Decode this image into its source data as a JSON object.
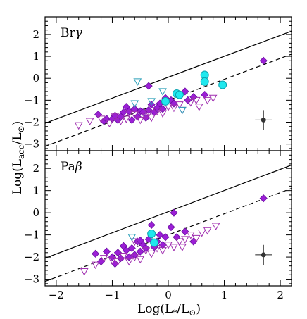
{
  "colors": {
    "diamond_fill": "#9b1fd6",
    "diamond_stroke": "#6a0fa0",
    "triangle_stroke": "#a02fb0",
    "triangle_cyan_stroke": "#2a9fb8",
    "circle_fill": "#1fe8ee",
    "circle_stroke": "#0aa3b0",
    "axis": "#000000"
  },
  "y_axis_label": "Log(L",
  "y_axis_label_sub": "acc",
  "y_axis_label_tail": "/L",
  "y_axis_label_end": ")",
  "x_axis_label": "Log(L",
  "x_axis_label_sub": "*",
  "x_axis_label_tail": "/L",
  "x_axis_label_end": ")",
  "chart_data": [
    {
      "type": "scatter",
      "title": "Brγ",
      "panel_label_base": "Br",
      "panel_label_greek": "γ",
      "xlim": [
        -2.2,
        2.2
      ],
      "ylim": [
        -3.3,
        2.8
      ],
      "xticks": [
        -2,
        -1,
        0,
        1,
        2
      ],
      "yticks": [
        -3,
        -2,
        -1,
        0,
        1,
        2
      ],
      "lines": [
        {
          "style": "solid",
          "points": [
            [
              -2.2,
              -2.05
            ],
            [
              2.2,
              2.15
            ]
          ]
        },
        {
          "style": "dashed",
          "points": [
            [
              -2.2,
              -3.1
            ],
            [
              2.2,
              1.1
            ]
          ]
        }
      ],
      "error_bar": {
        "x": 1.7,
        "y": -1.9,
        "xerr": 0.15,
        "yerr": 0.45
      },
      "series": [
        {
          "marker": "diamond",
          "points": [
            [
              -1.25,
              -1.65
            ],
            [
              -1.15,
              -1.95
            ],
            [
              -1.1,
              -1.85
            ],
            [
              -1.0,
              -1.85
            ],
            [
              -0.95,
              -1.7
            ],
            [
              -0.9,
              -1.9
            ],
            [
              -0.85,
              -1.75
            ],
            [
              -0.8,
              -1.55
            ],
            [
              -0.75,
              -1.3
            ],
            [
              -0.7,
              -1.5
            ],
            [
              -0.65,
              -1.9
            ],
            [
              -0.6,
              -1.4
            ],
            [
              -0.55,
              -1.75
            ],
            [
              -0.5,
              -1.5
            ],
            [
              -0.45,
              -1.55
            ],
            [
              -0.4,
              -1.8
            ],
            [
              -0.35,
              -1.45
            ],
            [
              -0.3,
              -1.2
            ],
            [
              -0.25,
              -1.55
            ],
            [
              -0.2,
              -1.35
            ],
            [
              -0.15,
              -1.15
            ],
            [
              -0.1,
              -1.4
            ],
            [
              -0.05,
              -0.9
            ],
            [
              0.05,
              -1.0
            ],
            [
              0.1,
              -1.15
            ],
            [
              0.15,
              -0.7
            ],
            [
              0.3,
              -0.6
            ],
            [
              0.35,
              -1.0
            ],
            [
              0.45,
              -0.85
            ],
            [
              0.65,
              -0.75
            ],
            [
              -0.35,
              -0.35
            ],
            [
              1.7,
              0.8
            ]
          ]
        },
        {
          "marker": "triangle",
          "points": [
            [
              -1.6,
              -2.15
            ],
            [
              -1.4,
              -1.95
            ],
            [
              -1.2,
              -1.85
            ],
            [
              -1.05,
              -2.05
            ],
            [
              -0.95,
              -1.75
            ],
            [
              -0.85,
              -1.95
            ],
            [
              -0.75,
              -1.85
            ],
            [
              -0.7,
              -1.6
            ],
            [
              -0.6,
              -1.65
            ],
            [
              -0.5,
              -1.9
            ],
            [
              -0.4,
              -1.7
            ],
            [
              -0.35,
              -1.6
            ],
            [
              -0.3,
              -1.8
            ],
            [
              -0.2,
              -1.5
            ],
            [
              -0.1,
              -1.6
            ],
            [
              0.0,
              -1.3
            ],
            [
              0.1,
              -1.35
            ],
            [
              0.2,
              -1.2
            ],
            [
              0.25,
              -1.45
            ],
            [
              0.4,
              -1.1
            ],
            [
              0.5,
              -1.0
            ],
            [
              0.55,
              -1.3
            ],
            [
              0.7,
              -1.0
            ],
            [
              0.8,
              -0.9
            ]
          ]
        },
        {
          "marker": "triangle_cyan",
          "points": [
            [
              -0.6,
              -1.15
            ],
            [
              -0.3,
              -1.05
            ],
            [
              -0.1,
              -0.6
            ],
            [
              -0.55,
              -0.15
            ],
            [
              0.25,
              -1.45
            ]
          ]
        },
        {
          "marker": "circle",
          "points": [
            [
              -0.05,
              -1.05
            ],
            [
              0.15,
              -0.7
            ],
            [
              0.2,
              -0.75
            ],
            [
              0.65,
              0.15
            ],
            [
              0.65,
              -0.15
            ],
            [
              0.97,
              -0.3
            ]
          ]
        }
      ]
    },
    {
      "type": "scatter",
      "title": "Paβ",
      "panel_label_base": "Pa",
      "panel_label_greek": "β",
      "xlim": [
        -2.2,
        2.2
      ],
      "ylim": [
        -3.3,
        2.8
      ],
      "xticks": [
        -2,
        -1,
        0,
        1,
        2
      ],
      "yticks": [
        -3,
        -2,
        -1,
        0,
        1,
        2
      ],
      "lines": [
        {
          "style": "solid",
          "points": [
            [
              -2.2,
              -2.05
            ],
            [
              2.2,
              2.15
            ]
          ]
        },
        {
          "style": "dashed",
          "points": [
            [
              -2.2,
              -3.1
            ],
            [
              2.2,
              1.1
            ]
          ]
        }
      ],
      "error_bar": {
        "x": 1.7,
        "y": -1.9,
        "xerr": 0.15,
        "yerr": 0.45
      },
      "series": [
        {
          "marker": "diamond",
          "points": [
            [
              -1.3,
              -1.85
            ],
            [
              -1.2,
              -2.2
            ],
            [
              -1.1,
              -1.75
            ],
            [
              -1.0,
              -2.0
            ],
            [
              -0.95,
              -2.3
            ],
            [
              -0.9,
              -1.8
            ],
            [
              -0.85,
              -2.05
            ],
            [
              -0.8,
              -1.5
            ],
            [
              -0.75,
              -1.7
            ],
            [
              -0.7,
              -2.0
            ],
            [
              -0.65,
              -1.6
            ],
            [
              -0.6,
              -1.9
            ],
            [
              -0.55,
              -1.3
            ],
            [
              -0.5,
              -1.75
            ],
            [
              -0.45,
              -1.45
            ],
            [
              -0.4,
              -1.6
            ],
            [
              -0.35,
              -1.2
            ],
            [
              -0.3,
              -0.55
            ],
            [
              -0.25,
              -1.55
            ],
            [
              -0.2,
              -1.3
            ],
            [
              -0.15,
              -1.0
            ],
            [
              -0.1,
              -1.45
            ],
            [
              -0.05,
              -1.1
            ],
            [
              0.05,
              -0.65
            ],
            [
              0.1,
              0.0
            ],
            [
              0.15,
              -1.1
            ],
            [
              0.3,
              -0.85
            ],
            [
              0.45,
              -1.3
            ],
            [
              1.7,
              0.65
            ],
            [
              -0.5,
              -1.25
            ]
          ]
        },
        {
          "marker": "triangle",
          "points": [
            [
              -1.5,
              -2.65
            ],
            [
              -1.3,
              -2.35
            ],
            [
              -1.15,
              -2.05
            ],
            [
              -1.0,
              -2.15
            ],
            [
              -0.9,
              -2.2
            ],
            [
              -0.8,
              -1.95
            ],
            [
              -0.7,
              -2.2
            ],
            [
              -0.6,
              -2.0
            ],
            [
              -0.5,
              -2.1
            ],
            [
              -0.4,
              -1.7
            ],
            [
              -0.3,
              -1.85
            ],
            [
              -0.2,
              -1.6
            ],
            [
              -0.1,
              -1.7
            ],
            [
              0.0,
              -1.45
            ],
            [
              0.1,
              -1.55
            ],
            [
              0.2,
              -1.3
            ],
            [
              0.3,
              -1.2
            ],
            [
              0.4,
              -1.0
            ],
            [
              0.5,
              -1.15
            ],
            [
              0.6,
              -0.9
            ],
            [
              0.7,
              -0.8
            ],
            [
              0.85,
              -0.6
            ],
            [
              -0.6,
              -1.3
            ],
            [
              0.25,
              -1.55
            ]
          ]
        },
        {
          "marker": "triangle_cyan",
          "points": [
            [
              -0.65,
              -1.1
            ],
            [
              -0.3,
              -1.05
            ]
          ]
        },
        {
          "marker": "circle",
          "points": [
            [
              -0.3,
              -0.95
            ],
            [
              -0.25,
              -1.35
            ]
          ]
        }
      ]
    }
  ]
}
